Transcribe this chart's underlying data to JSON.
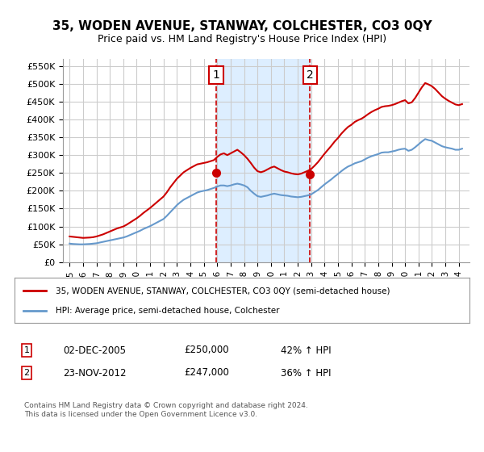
{
  "title": "35, WODEN AVENUE, STANWAY, COLCHESTER, CO3 0QY",
  "subtitle": "Price paid vs. HM Land Registry's House Price Index (HPI)",
  "legend_line1": "35, WODEN AVENUE, STANWAY, COLCHESTER, CO3 0QY (semi-detached house)",
  "legend_line2": "HPI: Average price, semi-detached house, Colchester",
  "footnote": "Contains HM Land Registry data © Crown copyright and database right 2024.\nThis data is licensed under the Open Government Licence v3.0.",
  "sale1_date": 2005.92,
  "sale1_price": 250000,
  "sale1_label": "1",
  "sale1_text": "02-DEC-2005    £250,000    42% ↑ HPI",
  "sale2_date": 2012.9,
  "sale2_price": 247000,
  "sale2_label": "2",
  "sale2_text": "23-NOV-2012    £247,000    36% ↑ HPI",
  "ylim": [
    0,
    570000
  ],
  "xlim_start": 1994.5,
  "xlim_end": 2024.8,
  "red_color": "#cc0000",
  "blue_color": "#6699cc",
  "shade_color": "#ddeeff",
  "grid_color": "#cccccc",
  "bg_color": "#ffffff",
  "hpi_data_x": [
    1995.0,
    1995.25,
    1995.5,
    1995.75,
    1996.0,
    1996.25,
    1996.5,
    1996.75,
    1997.0,
    1997.25,
    1997.5,
    1997.75,
    1998.0,
    1998.25,
    1998.5,
    1998.75,
    1999.0,
    1999.25,
    1999.5,
    1999.75,
    2000.0,
    2000.25,
    2000.5,
    2000.75,
    2001.0,
    2001.25,
    2001.5,
    2001.75,
    2002.0,
    2002.25,
    2002.5,
    2002.75,
    2003.0,
    2003.25,
    2003.5,
    2003.75,
    2004.0,
    2004.25,
    2004.5,
    2004.75,
    2005.0,
    2005.25,
    2005.5,
    2005.75,
    2006.0,
    2006.25,
    2006.5,
    2006.75,
    2007.0,
    2007.25,
    2007.5,
    2007.75,
    2008.0,
    2008.25,
    2008.5,
    2008.75,
    2009.0,
    2009.25,
    2009.5,
    2009.75,
    2010.0,
    2010.25,
    2010.5,
    2010.75,
    2011.0,
    2011.25,
    2011.5,
    2011.75,
    2012.0,
    2012.25,
    2012.5,
    2012.75,
    2013.0,
    2013.25,
    2013.5,
    2013.75,
    2014.0,
    2014.25,
    2014.5,
    2014.75,
    2015.0,
    2015.25,
    2015.5,
    2015.75,
    2016.0,
    2016.25,
    2016.5,
    2016.75,
    2017.0,
    2017.25,
    2017.5,
    2017.75,
    2018.0,
    2018.25,
    2018.5,
    2018.75,
    2019.0,
    2019.25,
    2019.5,
    2019.75,
    2020.0,
    2020.25,
    2020.5,
    2020.75,
    2021.0,
    2021.25,
    2021.5,
    2021.75,
    2022.0,
    2022.25,
    2022.5,
    2022.75,
    2023.0,
    2023.25,
    2023.5,
    2023.75,
    2024.0,
    2024.25
  ],
  "hpi_data_y": [
    52000,
    51000,
    50500,
    50000,
    50000,
    50500,
    51000,
    52000,
    53000,
    55000,
    57000,
    59000,
    61000,
    63000,
    65000,
    67000,
    69000,
    72000,
    76000,
    80000,
    84000,
    88000,
    93000,
    97000,
    101000,
    106000,
    111000,
    116000,
    121000,
    130000,
    140000,
    150000,
    160000,
    168000,
    175000,
    180000,
    185000,
    190000,
    195000,
    198000,
    200000,
    202000,
    205000,
    208000,
    212000,
    215000,
    215000,
    213000,
    215000,
    218000,
    220000,
    218000,
    215000,
    210000,
    200000,
    192000,
    185000,
    183000,
    185000,
    187000,
    190000,
    192000,
    190000,
    188000,
    187000,
    186000,
    184000,
    183000,
    182000,
    183000,
    185000,
    187000,
    190000,
    196000,
    202000,
    210000,
    218000,
    225000,
    232000,
    240000,
    247000,
    255000,
    262000,
    268000,
    272000,
    277000,
    280000,
    283000,
    288000,
    293000,
    297000,
    300000,
    303000,
    307000,
    308000,
    308000,
    310000,
    312000,
    315000,
    317000,
    318000,
    312000,
    315000,
    322000,
    330000,
    338000,
    345000,
    342000,
    340000,
    335000,
    330000,
    325000,
    322000,
    320000,
    318000,
    315000,
    315000,
    318000
  ],
  "red_data_x": [
    1995.0,
    1995.25,
    1995.5,
    1995.75,
    1996.0,
    1996.25,
    1996.5,
    1996.75,
    1997.0,
    1997.25,
    1997.5,
    1997.75,
    1998.0,
    1998.25,
    1998.5,
    1998.75,
    1999.0,
    1999.25,
    1999.5,
    1999.75,
    2000.0,
    2000.25,
    2000.5,
    2000.75,
    2001.0,
    2001.25,
    2001.5,
    2001.75,
    2002.0,
    2002.25,
    2002.5,
    2002.75,
    2003.0,
    2003.25,
    2003.5,
    2003.75,
    2004.0,
    2004.25,
    2004.5,
    2004.75,
    2005.0,
    2005.25,
    2005.5,
    2005.75,
    2006.0,
    2006.25,
    2006.5,
    2006.75,
    2007.0,
    2007.25,
    2007.5,
    2007.75,
    2008.0,
    2008.25,
    2008.5,
    2008.75,
    2009.0,
    2009.25,
    2009.5,
    2009.75,
    2010.0,
    2010.25,
    2010.5,
    2010.75,
    2011.0,
    2011.25,
    2011.5,
    2011.75,
    2012.0,
    2012.25,
    2012.5,
    2012.75,
    2013.0,
    2013.25,
    2013.5,
    2013.75,
    2014.0,
    2014.25,
    2014.5,
    2014.75,
    2015.0,
    2015.25,
    2015.5,
    2015.75,
    2016.0,
    2016.25,
    2016.5,
    2016.75,
    2017.0,
    2017.25,
    2017.5,
    2017.75,
    2018.0,
    2018.25,
    2018.5,
    2018.75,
    2019.0,
    2019.25,
    2019.5,
    2019.75,
    2020.0,
    2020.25,
    2020.5,
    2020.75,
    2021.0,
    2021.25,
    2021.5,
    2021.75,
    2022.0,
    2022.25,
    2022.5,
    2022.75,
    2023.0,
    2023.25,
    2023.5,
    2023.75,
    2024.0,
    2024.25
  ],
  "red_data_y": [
    72000,
    71000,
    70000,
    69000,
    68000,
    68500,
    69000,
    70000,
    72000,
    75000,
    78000,
    82000,
    86000,
    90000,
    94000,
    97000,
    100000,
    105000,
    111000,
    117000,
    123000,
    130000,
    138000,
    145000,
    152000,
    160000,
    168000,
    176000,
    184000,
    196000,
    210000,
    222000,
    234000,
    243000,
    252000,
    258000,
    264000,
    269000,
    274000,
    276000,
    278000,
    280000,
    283000,
    286000,
    295000,
    302000,
    305000,
    300000,
    305000,
    310000,
    315000,
    308000,
    300000,
    290000,
    278000,
    265000,
    255000,
    252000,
    255000,
    260000,
    265000,
    268000,
    263000,
    258000,
    254000,
    252000,
    249000,
    247000,
    246000,
    248000,
    252000,
    256000,
    261000,
    270000,
    280000,
    292000,
    304000,
    315000,
    326000,
    338000,
    348000,
    360000,
    370000,
    379000,
    385000,
    393000,
    398000,
    402000,
    408000,
    415000,
    421000,
    426000,
    430000,
    435000,
    437000,
    438000,
    440000,
    443000,
    447000,
    451000,
    454000,
    445000,
    448000,
    460000,
    475000,
    490000,
    502000,
    498000,
    493000,
    485000,
    475000,
    465000,
    458000,
    452000,
    447000,
    442000,
    440000,
    443000
  ],
  "yticks": [
    0,
    50000,
    100000,
    150000,
    200000,
    250000,
    300000,
    350000,
    400000,
    450000,
    500000,
    550000
  ],
  "xticks": [
    1995,
    1996,
    1997,
    1998,
    1999,
    2000,
    2001,
    2002,
    2003,
    2004,
    2005,
    2006,
    2007,
    2008,
    2009,
    2010,
    2011,
    2012,
    2013,
    2014,
    2015,
    2016,
    2017,
    2018,
    2019,
    2020,
    2021,
    2022,
    2023,
    2024
  ]
}
